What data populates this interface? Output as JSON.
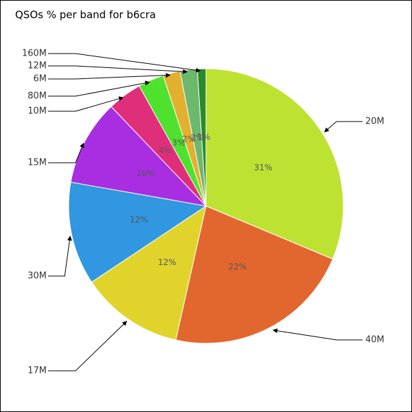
{
  "chart_data": {
    "type": "pie",
    "title": "QSOs % per band for b6cra",
    "categories": [
      "20M",
      "40M",
      "17M",
      "30M",
      "15M",
      "10M",
      "80M",
      "6M",
      "12M",
      "160M"
    ],
    "values": [
      31,
      22,
      12,
      12,
      10,
      4,
      3,
      2,
      2,
      1
    ],
    "value_labels": [
      "31%",
      "22%",
      "12%",
      "12%",
      "10%",
      "4%",
      "3%",
      "2%",
      "2%",
      "1%"
    ],
    "colors": [
      "#bde232",
      "#e2672e",
      "#e0d42c",
      "#3097e0",
      "#a92ee2",
      "#e02f7a",
      "#4ee22e",
      "#e2b02e",
      "#6cb86c",
      "#2a8a2a"
    ]
  }
}
